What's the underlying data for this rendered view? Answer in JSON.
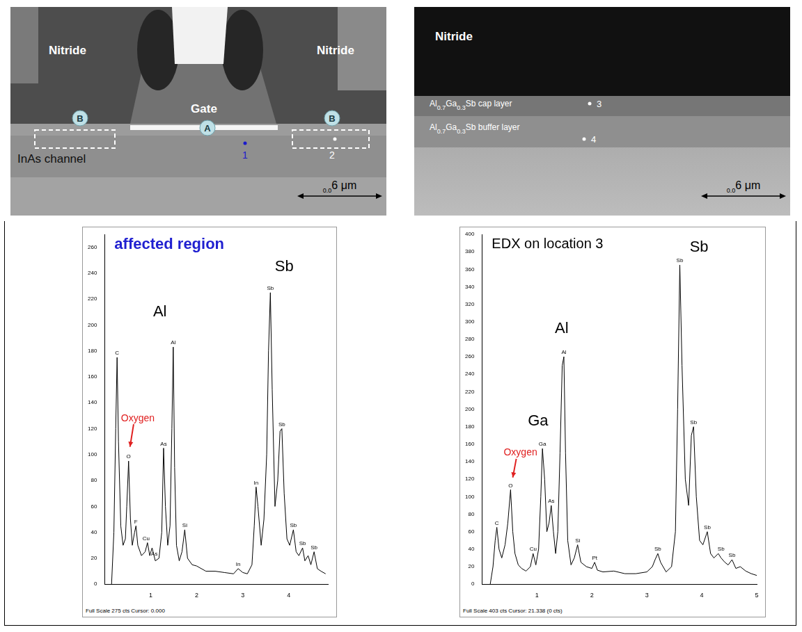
{
  "chart_data": [
    {
      "type": "line",
      "title": "affected region",
      "color": "#000000",
      "grid": false,
      "x": [
        0.15,
        0.2,
        0.24,
        0.27,
        0.3,
        0.35,
        0.4,
        0.45,
        0.48,
        0.52,
        0.56,
        0.6,
        0.65,
        0.68,
        0.72,
        0.8,
        0.88,
        0.93,
        0.98,
        1.03,
        1.1,
        1.18,
        1.24,
        1.28,
        1.32,
        1.37,
        1.42,
        1.46,
        1.49,
        1.52,
        1.56,
        1.62,
        1.68,
        1.74,
        1.8,
        1.9,
        2.0,
        2.2,
        2.4,
        2.6,
        2.8,
        2.9,
        3.0,
        3.1,
        3.2,
        3.25,
        3.29,
        3.33,
        3.4,
        3.46,
        3.52,
        3.56,
        3.6,
        3.64,
        3.7,
        3.76,
        3.81,
        3.85,
        3.9,
        3.96,
        4.02,
        4.1,
        4.16,
        4.22,
        4.3,
        4.35,
        4.42,
        4.48,
        4.55,
        4.62,
        4.7,
        4.8
      ],
      "values": [
        0,
        40,
        120,
        175,
        110,
        45,
        30,
        35,
        60,
        95,
        50,
        30,
        40,
        45,
        30,
        22,
        25,
        32,
        22,
        28,
        18,
        20,
        40,
        105,
        60,
        30,
        45,
        120,
        183,
        90,
        30,
        18,
        25,
        42,
        20,
        15,
        14,
        10,
        10,
        9,
        8,
        12,
        9,
        8,
        15,
        45,
        75,
        60,
        30,
        50,
        100,
        180,
        225,
        150,
        60,
        80,
        118,
        120,
        70,
        35,
        30,
        42,
        25,
        22,
        28,
        18,
        22,
        15,
        25,
        12,
        10,
        8
      ],
      "xlim": [
        0,
        4.85
      ],
      "xticks": [
        1,
        2,
        3,
        4
      ],
      "ylim": [
        0,
        270
      ],
      "yticks": [
        0,
        20,
        40,
        60,
        80,
        100,
        120,
        140,
        160,
        180,
        200,
        220,
        240,
        260
      ],
      "peak_labels": [
        {
          "text": "C",
          "x": 0.27,
          "y": 175
        },
        {
          "text": "O",
          "x": 0.52,
          "y": 95
        },
        {
          "text": "F",
          "x": 0.68,
          "y": 45
        },
        {
          "text": "Cu",
          "x": 0.9,
          "y": 32
        },
        {
          "text": "As",
          "x": 1.08,
          "y": 20
        },
        {
          "text": "As",
          "x": 1.28,
          "y": 105
        },
        {
          "text": "Al",
          "x": 1.49,
          "y": 183
        },
        {
          "text": "Si",
          "x": 1.74,
          "y": 42
        },
        {
          "text": "In",
          "x": 2.9,
          "y": 12
        },
        {
          "text": "In",
          "x": 3.29,
          "y": 75
        },
        {
          "text": "Sb",
          "x": 3.6,
          "y": 225
        },
        {
          "text": "Sb",
          "x": 3.85,
          "y": 120
        },
        {
          "text": "Sb",
          "x": 4.1,
          "y": 42
        },
        {
          "text": "Sb",
          "x": 4.3,
          "y": 28
        },
        {
          "text": "Sb",
          "x": 4.55,
          "y": 25
        }
      ],
      "annotations": [
        {
          "text": "Al",
          "x": 1.2,
          "y": 210,
          "color": "#000000"
        },
        {
          "text": "Sb",
          "x": 3.9,
          "y": 245,
          "color": "#000000"
        },
        {
          "text": "Oxygen",
          "x": 0.72,
          "y": 128,
          "color": "#e02020",
          "arrow_to": [
            0.55,
            106
          ]
        }
      ],
      "footer": "Full Scale 275 cts Cursor: 0.000"
    },
    {
      "type": "line",
      "title": "EDX on location 3",
      "color": "#000000",
      "grid": false,
      "x": [
        0.15,
        0.2,
        0.24,
        0.27,
        0.31,
        0.36,
        0.42,
        0.47,
        0.52,
        0.56,
        0.6,
        0.66,
        0.72,
        0.8,
        0.88,
        0.93,
        0.98,
        1.03,
        1.07,
        1.1,
        1.14,
        1.18,
        1.22,
        1.26,
        1.3,
        1.34,
        1.38,
        1.42,
        1.46,
        1.49,
        1.52,
        1.56,
        1.62,
        1.68,
        1.74,
        1.8,
        1.9,
        2.0,
        2.05,
        2.1,
        2.2,
        2.4,
        2.6,
        2.8,
        3.0,
        3.1,
        3.15,
        3.2,
        3.25,
        3.35,
        3.45,
        3.52,
        3.56,
        3.6,
        3.64,
        3.7,
        3.76,
        3.81,
        3.85,
        3.9,
        3.96,
        4.02,
        4.1,
        4.16,
        4.22,
        4.3,
        4.35,
        4.42,
        4.48,
        4.55,
        4.62,
        4.7,
        4.8,
        4.9,
        5.0
      ],
      "values": [
        0,
        20,
        50,
        65,
        40,
        30,
        45,
        70,
        108,
        60,
        35,
        22,
        18,
        15,
        20,
        35,
        22,
        40,
        100,
        155,
        120,
        60,
        70,
        90,
        60,
        35,
        60,
        150,
        250,
        260,
        150,
        50,
        22,
        30,
        45,
        25,
        20,
        18,
        25,
        16,
        14,
        15,
        12,
        12,
        14,
        20,
        28,
        35,
        25,
        14,
        20,
        60,
        200,
        365,
        250,
        120,
        90,
        170,
        180,
        100,
        50,
        45,
        60,
        35,
        30,
        35,
        30,
        25,
        22,
        28,
        18,
        20,
        15,
        12,
        10
      ],
      "xlim": [
        0,
        5
      ],
      "xticks": [
        1,
        2,
        3,
        4,
        5
      ],
      "ylim": [
        0,
        400
      ],
      "yticks": [
        0,
        20,
        40,
        60,
        80,
        100,
        120,
        140,
        160,
        180,
        200,
        220,
        240,
        260,
        280,
        300,
        320,
        340,
        360,
        380,
        400
      ],
      "peak_labels": [
        {
          "text": "C",
          "x": 0.27,
          "y": 65
        },
        {
          "text": "O",
          "x": 0.52,
          "y": 108
        },
        {
          "text": "Cu",
          "x": 0.93,
          "y": 35
        },
        {
          "text": "Ga",
          "x": 1.1,
          "y": 155
        },
        {
          "text": "As",
          "x": 1.26,
          "y": 90
        },
        {
          "text": "Al",
          "x": 1.49,
          "y": 260
        },
        {
          "text": "Si",
          "x": 1.74,
          "y": 45
        },
        {
          "text": "Pt",
          "x": 2.05,
          "y": 25
        },
        {
          "text": "Sb",
          "x": 3.2,
          "y": 35
        },
        {
          "text": "Sb",
          "x": 3.6,
          "y": 365
        },
        {
          "text": "Sb",
          "x": 3.85,
          "y": 180
        },
        {
          "text": "Sb",
          "x": 4.1,
          "y": 60
        },
        {
          "text": "Sb",
          "x": 4.35,
          "y": 35
        },
        {
          "text": "Sb",
          "x": 4.55,
          "y": 28
        }
      ],
      "annotations": [
        {
          "text": "Al",
          "x": 1.45,
          "y": 292,
          "color": "#000000"
        },
        {
          "text": "Ga",
          "x": 1.02,
          "y": 186,
          "color": "#000000"
        },
        {
          "text": "Sb",
          "x": 3.95,
          "y": 385,
          "color": "#000000"
        },
        {
          "text": "Oxygen",
          "x": 0.7,
          "y": 150,
          "color": "#e02020",
          "arrow_to": [
            0.56,
            122
          ]
        }
      ],
      "footer": "Full Scale 403 cts Cursor: 21.338 (0 cts)"
    }
  ],
  "micrographs": [
    {
      "labels": [
        "Nitride",
        "Nitride",
        "Gate",
        "InAs channel"
      ],
      "markers": [
        "B",
        "A",
        "B"
      ],
      "points": [
        "1",
        "2"
      ],
      "scale_bar": "0.06 μm"
    },
    {
      "labels": [
        "Nitride",
        "Al0.7Ga0.3Sb cap layer",
        "Al0.7Ga0.3Sb buffer layer"
      ],
      "points": [
        "3",
        "4"
      ],
      "scale_bar": "0.06 μm"
    }
  ]
}
